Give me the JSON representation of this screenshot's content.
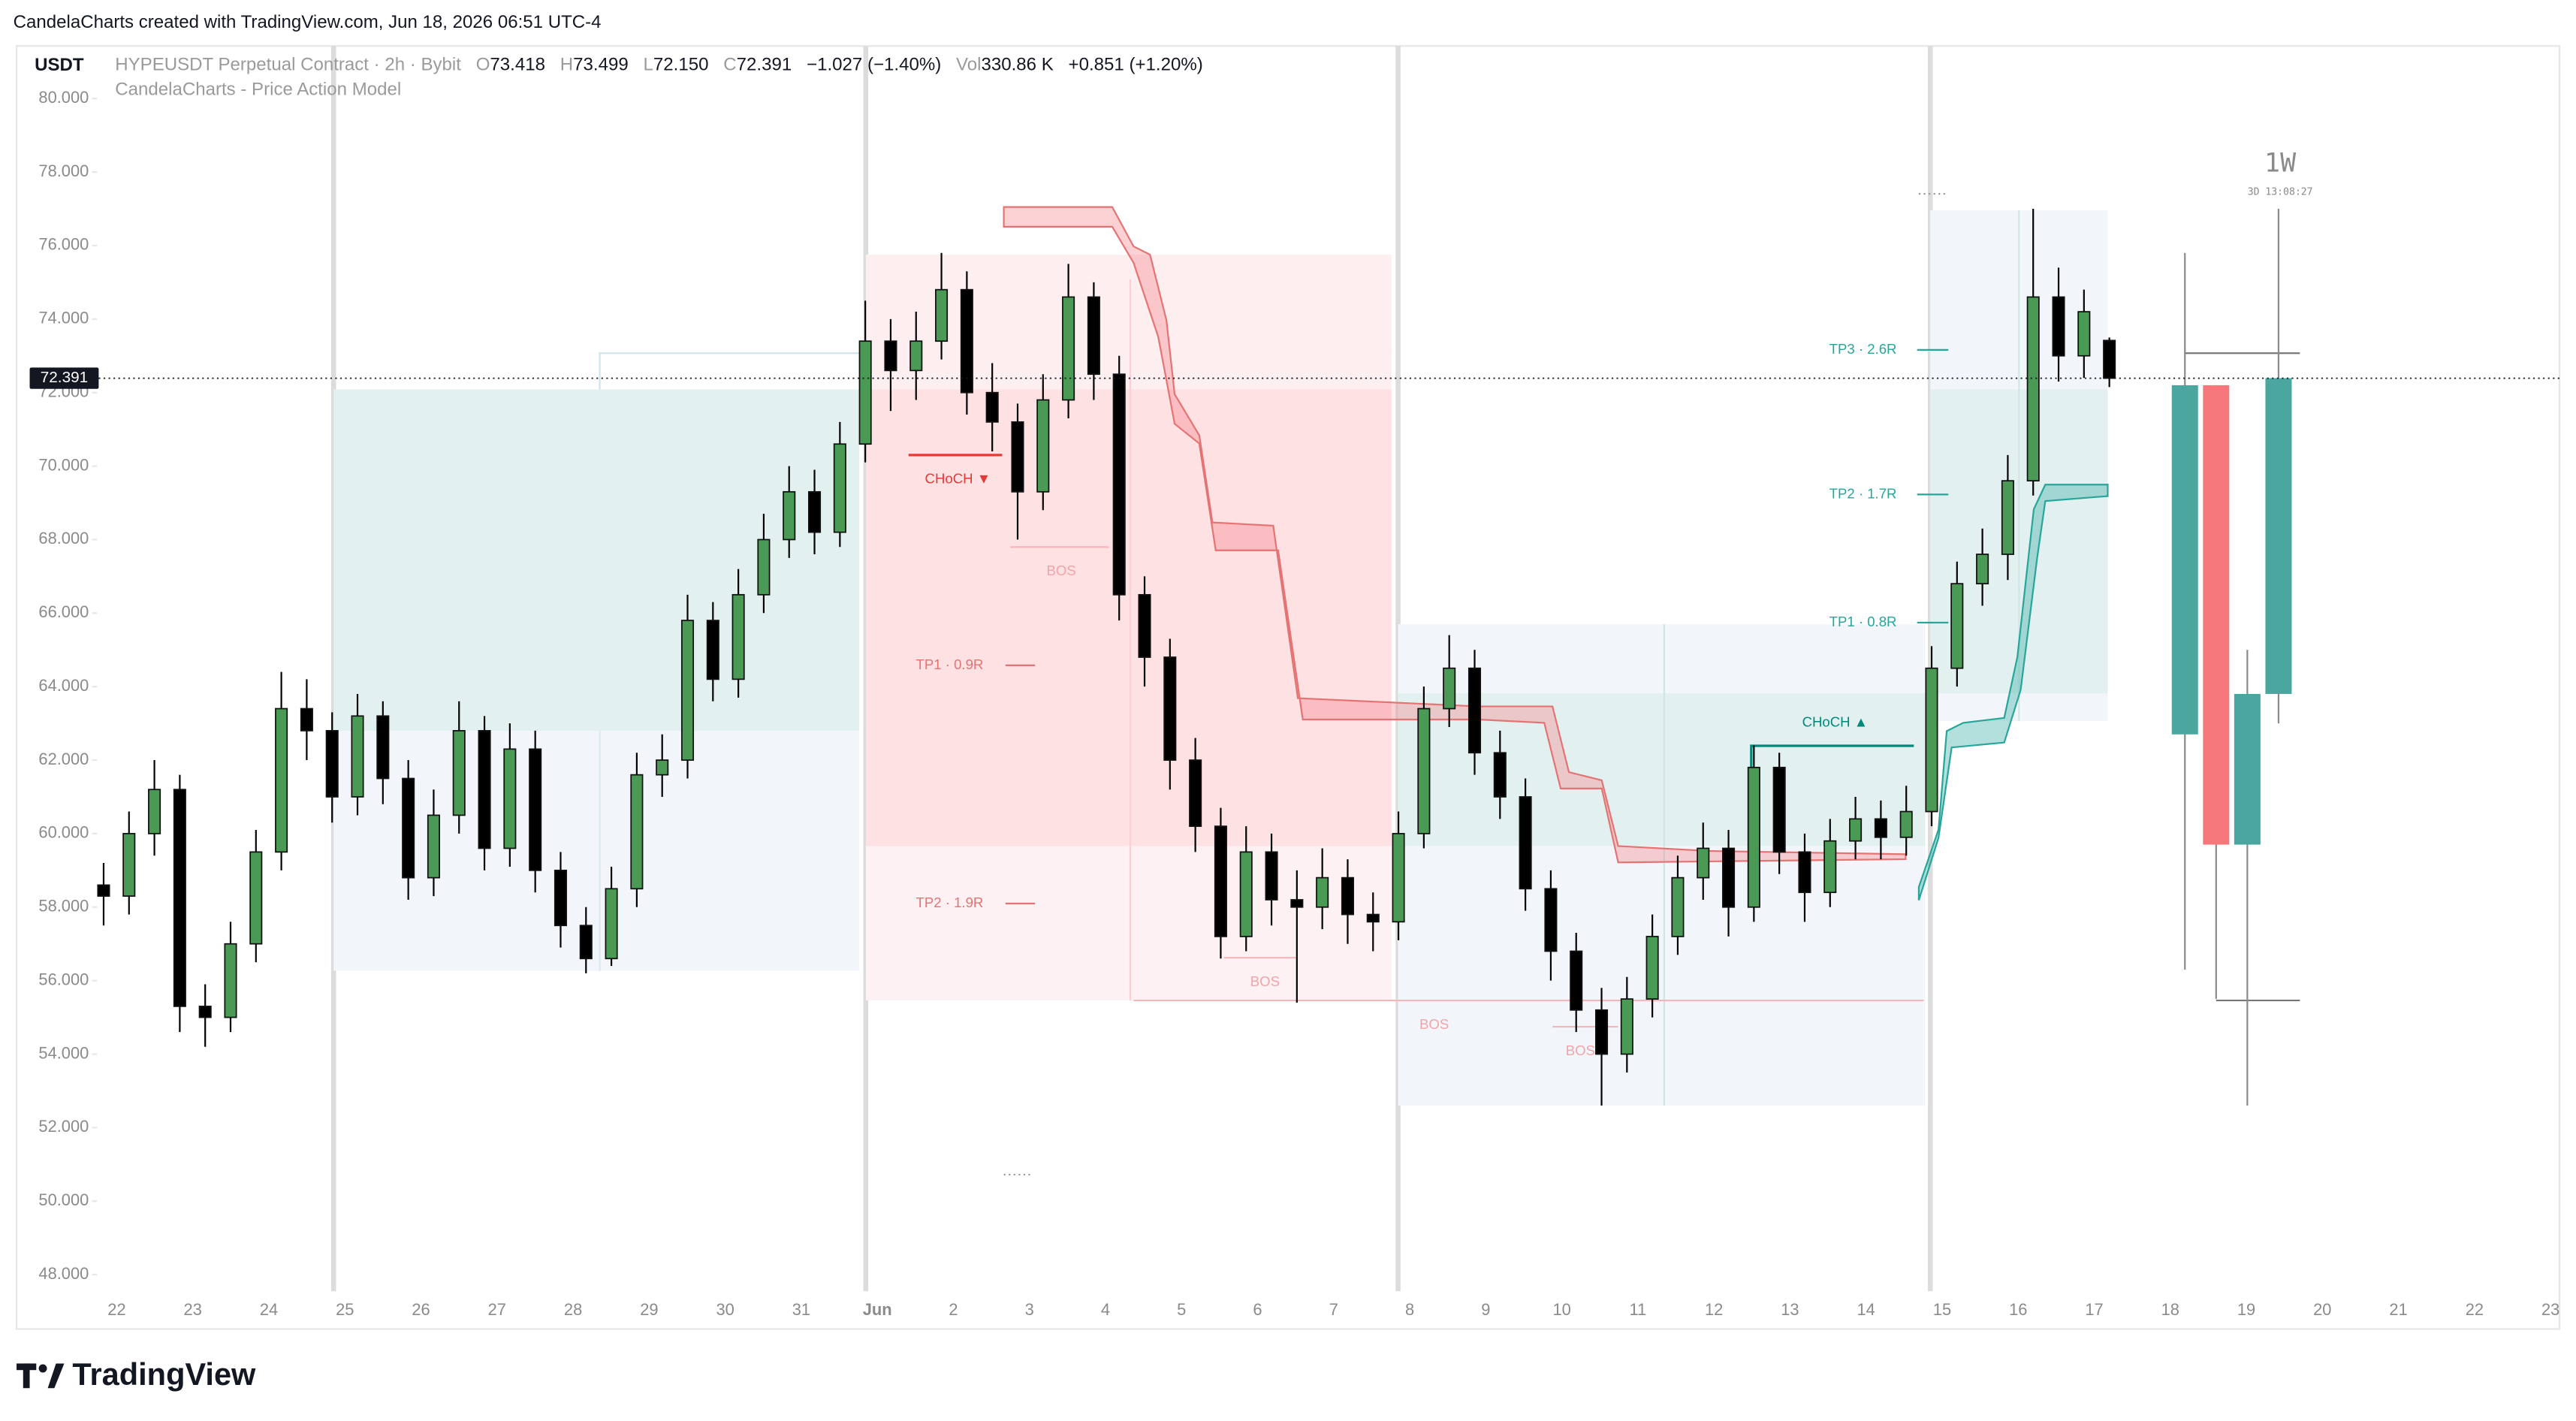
{
  "chart_data": {
    "type": "candlestick",
    "watermark": "CandelaCharts created with TradingView.com, Jun 18, 2026 06:51 UTC-4",
    "currency": "USDT",
    "symbol": "HYPEUSDT Perpetual Contract · 2h · Bybit",
    "legend": [
      {
        "key": "O",
        "value": "73.418"
      },
      {
        "key": "H",
        "value": "73.499"
      },
      {
        "key": "L",
        "value": "72.150"
      },
      {
        "key": "C",
        "value": "72.391"
      }
    ],
    "change": "−1.027 (−1.40%)",
    "volume": {
      "key": "Vol",
      "value": "330.86 K"
    },
    "volume_change": "+0.851 (+1.20%)",
    "indicator": "CandelaCharts - Price Action Model",
    "brand": "TradingView",
    "last_price": 72.391,
    "ylim": [
      47.37,
      81.43
    ],
    "yticks": [
      {
        "value": 80,
        "label": "80.000"
      },
      {
        "value": 78,
        "label": "78.000"
      },
      {
        "value": 76,
        "label": "76.000"
      },
      {
        "value": 74,
        "label": "74.000"
      },
      {
        "value": 72,
        "label": "72.000"
      },
      {
        "value": 70,
        "label": "70.000"
      },
      {
        "value": 68,
        "label": "68.000"
      },
      {
        "value": 66,
        "label": "66.000"
      },
      {
        "value": 64,
        "label": "64.000"
      },
      {
        "value": 62,
        "label": "62.000"
      },
      {
        "value": 60,
        "label": "60.000"
      },
      {
        "value": 58,
        "label": "58.000"
      },
      {
        "value": 56,
        "label": "56.000"
      },
      {
        "value": 54,
        "label": "54.000"
      },
      {
        "value": 52,
        "label": "52.000"
      },
      {
        "value": 50,
        "label": "50.000"
      },
      {
        "value": 48,
        "label": "48.000"
      }
    ],
    "x_labels": [
      "22",
      "23",
      "24",
      "25",
      "26",
      "27",
      "28",
      "29",
      "30",
      "31",
      "Jun",
      "2",
      "3",
      "4",
      "5",
      "6",
      "7",
      "8",
      "9",
      "10",
      "11",
      "12",
      "13",
      "14",
      "15",
      "16",
      "17",
      "18",
      "19",
      "20",
      "21",
      "22",
      "23"
    ],
    "up_color": "#4a9a55",
    "down_color": "#000000",
    "series": {
      "open": [
        58.6,
        58.3,
        60.0,
        61.2,
        55.3,
        55.0,
        57.0,
        59.5,
        63.4,
        62.8,
        61.0,
        63.2,
        61.5,
        58.8,
        60.5,
        62.8,
        59.6,
        62.3,
        59.0,
        57.5,
        56.6,
        58.5,
        61.6,
        62.0,
        65.8,
        64.2,
        66.5,
        68.0,
        69.3,
        68.2,
        70.6,
        73.4,
        72.6,
        73.4,
        74.8,
        72.0,
        71.2,
        69.3,
        71.8,
        74.6,
        72.5,
        66.5,
        64.8,
        62.0,
        60.2,
        57.2,
        59.5,
        58.2,
        58.0,
        58.8,
        57.8,
        57.6,
        60.0,
        63.4,
        64.5,
        62.2,
        61.0,
        58.5,
        56.8,
        55.2,
        54.0,
        55.5,
        57.2,
        58.8,
        59.6,
        58.0,
        61.8,
        59.5,
        58.4,
        59.8,
        60.4,
        59.9,
        60.6,
        64.5,
        66.8,
        67.6,
        69.6,
        74.6,
        73.0,
        73.418
      ],
      "high": [
        59.2,
        60.6,
        62.0,
        61.6,
        55.9,
        57.6,
        60.1,
        64.4,
        64.2,
        63.3,
        63.8,
        63.6,
        62.0,
        61.2,
        63.6,
        63.2,
        63.0,
        62.8,
        59.5,
        58.0,
        59.1,
        62.2,
        62.7,
        66.5,
        66.3,
        67.2,
        68.7,
        70.0,
        69.9,
        71.2,
        74.5,
        74.0,
        74.2,
        75.8,
        75.3,
        72.8,
        71.7,
        72.5,
        75.5,
        75.0,
        73.0,
        67.0,
        65.3,
        62.6,
        60.7,
        60.2,
        60.0,
        59.0,
        59.6,
        59.3,
        58.4,
        60.6,
        64.0,
        65.4,
        65.0,
        62.8,
        61.5,
        59.0,
        57.3,
        55.8,
        56.1,
        57.8,
        59.4,
        60.3,
        60.1,
        62.4,
        62.2,
        60.0,
        60.4,
        61.0,
        60.9,
        61.3,
        65.1,
        67.4,
        68.3,
        70.3,
        77.0,
        75.4,
        74.8,
        73.499
      ],
      "low": [
        57.5,
        57.8,
        59.4,
        54.6,
        54.2,
        54.6,
        56.5,
        59.0,
        62.0,
        60.3,
        60.5,
        60.8,
        58.2,
        58.3,
        60.0,
        59.0,
        59.1,
        58.4,
        56.9,
        56.2,
        56.4,
        58.0,
        61.0,
        61.5,
        63.6,
        63.7,
        66.0,
        67.5,
        67.6,
        67.8,
        70.1,
        71.5,
        71.8,
        72.9,
        71.4,
        70.4,
        68.0,
        68.8,
        71.3,
        71.8,
        65.8,
        64.0,
        61.2,
        59.5,
        56.6,
        56.8,
        57.5,
        55.4,
        57.4,
        57.0,
        56.8,
        57.1,
        59.6,
        62.9,
        61.6,
        60.4,
        57.9,
        56.0,
        54.6,
        52.6,
        53.5,
        55.0,
        56.7,
        58.2,
        57.2,
        57.6,
        58.9,
        57.6,
        58.0,
        59.3,
        59.3,
        59.4,
        60.2,
        64.0,
        66.2,
        66.9,
        69.2,
        72.3,
        72.4,
        72.15
      ],
      "close": [
        58.3,
        60.0,
        61.2,
        55.3,
        55.0,
        57.0,
        59.5,
        63.4,
        62.8,
        61.0,
        63.2,
        61.5,
        58.8,
        60.5,
        62.8,
        59.6,
        62.3,
        59.0,
        57.5,
        56.6,
        58.5,
        61.6,
        62.0,
        65.8,
        64.2,
        66.5,
        68.0,
        69.3,
        68.2,
        70.6,
        73.4,
        72.6,
        73.4,
        74.8,
        72.0,
        71.2,
        69.3,
        71.8,
        74.6,
        72.5,
        66.5,
        64.8,
        62.0,
        60.2,
        57.2,
        59.5,
        58.2,
        58.0,
        58.8,
        57.8,
        57.6,
        60.0,
        63.4,
        64.5,
        62.2,
        61.0,
        58.5,
        56.8,
        55.2,
        54.0,
        55.5,
        57.2,
        58.8,
        59.6,
        58.0,
        61.8,
        59.5,
        58.4,
        59.8,
        60.4,
        59.9,
        60.6,
        64.5,
        66.8,
        67.6,
        69.6,
        74.6,
        73.0,
        74.2,
        72.391
      ]
    },
    "annotations": [
      "CHoCH ▼",
      "BOS",
      "TP1 · 0.9R",
      "TP2 · 1.9R",
      "BOS",
      "BOS",
      "BOS",
      "TP3 · 2.6R",
      "TP2 · 1.7R",
      "TP1 · 0.8R",
      "CHoCH ▲"
    ],
    "htf": {
      "label": "1W",
      "countdown": "3D 13:08:27",
      "up_color": "#4aa69f",
      "down_color": "#f7787c",
      "open": [
        62.7,
        72.2,
        59.7,
        63.8
      ],
      "high": [
        75.8,
        72.2,
        65.0,
        77.0
      ],
      "low": [
        56.3,
        55.5,
        52.6,
        63.0
      ],
      "close": [
        72.2,
        59.7,
        63.8,
        72.391
      ]
    }
  }
}
